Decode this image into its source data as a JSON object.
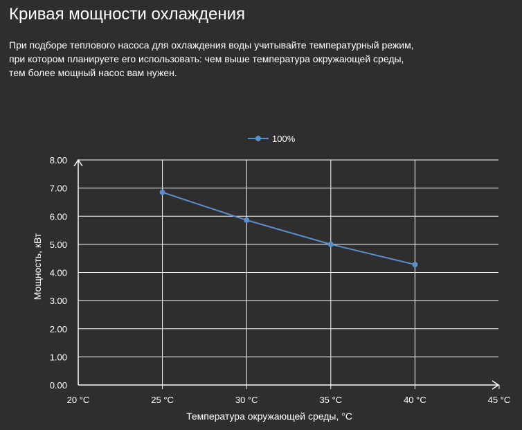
{
  "header": {
    "title": "Кривая мощности охлаждения",
    "description_lines": [
      "При подборе теплового насоса для охлаждения воды учитывайте температурный режим,",
      "при котором планируете его использовать: чем выше температура окружающей среды,",
      "тем более мощный насос вам нужен."
    ]
  },
  "colors": {
    "background": "#2f2e2f",
    "series": "#5b8fc9",
    "grid": "#ffffff",
    "text": "#ffffff"
  },
  "chart_data": {
    "type": "line",
    "categories": [
      "20 °C",
      "25 °C",
      "30 °C",
      "35 °C",
      "40 °C",
      "45 °C"
    ],
    "series": [
      {
        "name": "100%",
        "x": [
          "25 °C",
          "30 °C",
          "35 °C",
          "40 °C"
        ],
        "values": [
          6.85,
          5.86,
          5.0,
          4.28
        ]
      }
    ],
    "ytick_labels": [
      "0.00",
      "1.00",
      "2.00",
      "3.00",
      "4.00",
      "5.00",
      "6.00",
      "7.00",
      "8.00"
    ],
    "xlabel": "Температура окружающей среды, °C",
    "ylabel": "Мощность, кВт",
    "ylim": [
      0,
      8
    ],
    "grid": true,
    "legend_position": "top-center"
  }
}
